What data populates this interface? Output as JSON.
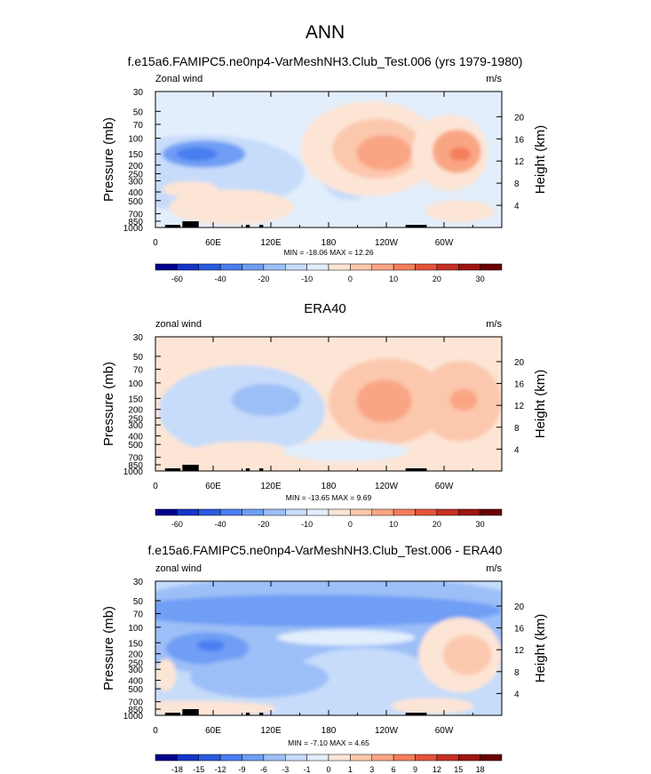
{
  "figure": {
    "title": "ANN"
  },
  "chart_data": [
    {
      "type": "heatmap",
      "title": "f.e15a6.FAMIPC5.ne0np4-VarMeshNH3.Club_Test.006 (yrs 1979-1980)",
      "left_label": "Zonal wind",
      "units": "m/s",
      "ylabel": "Pressure (mb)",
      "ylabel_right": "Height (km)",
      "pressure_ticks": [
        "30",
        "50",
        "70",
        "100",
        "150",
        "200",
        "250",
        "300",
        "400",
        "500",
        "700",
        "850",
        "1000"
      ],
      "height_ticks": [
        "20",
        "16",
        "12",
        "8",
        "4"
      ],
      "lon_ticks": [
        "0",
        "60E",
        "120E",
        "180",
        "120W",
        "60W"
      ],
      "stats": "MIN = -18.06  MAX = 12.26",
      "min": -18.06,
      "max": 12.26,
      "colorbar_levels": [
        "-60",
        "-40",
        "-20",
        "-10",
        "0",
        "10",
        "20",
        "30"
      ],
      "colorbar_colors": [
        "#00008b",
        "#1535c9",
        "#2b5bde",
        "#4a7ef0",
        "#6f9ef5",
        "#9dbff7",
        "#c6dcfa",
        "#e2eefc",
        "#fde5d6",
        "#fcc8ad",
        "#f9a584",
        "#f47d5b",
        "#e4543a",
        "#c53025",
        "#9e1512",
        "#6b0000"
      ],
      "field_features": [
        {
          "lon": 72,
          "p": 150,
          "value": -18
        },
        {
          "lon": 72,
          "p": 180,
          "value": -12
        },
        {
          "lon": 170,
          "p": 70,
          "value": -6
        },
        {
          "lon": 210,
          "p": 150,
          "value": 12
        },
        {
          "lon": 305,
          "p": 150,
          "value": 12
        },
        {
          "lon": 40,
          "p": 700,
          "value": 3
        },
        {
          "lon": 20,
          "p": 300,
          "value": 1
        }
      ]
    },
    {
      "type": "heatmap",
      "title": "ERA40",
      "left_label": "zonal wind",
      "units": "m/s",
      "ylabel": "Pressure (mb)",
      "ylabel_right": "Height (km)",
      "pressure_ticks": [
        "30",
        "50",
        "70",
        "100",
        "150",
        "200",
        "250",
        "300",
        "400",
        "500",
        "700",
        "850",
        "1000"
      ],
      "height_ticks": [
        "20",
        "16",
        "12",
        "8",
        "4"
      ],
      "lon_ticks": [
        "0",
        "60E",
        "120E",
        "180",
        "120W",
        "60W"
      ],
      "stats": "MIN = -13.65  MAX = 9.69",
      "min": -13.65,
      "max": 9.69,
      "colorbar_levels": [
        "-60",
        "-40",
        "-20",
        "-10",
        "0",
        "10",
        "20",
        "30"
      ],
      "colorbar_colors": [
        "#00008b",
        "#1535c9",
        "#2b5bde",
        "#4a7ef0",
        "#6f9ef5",
        "#9dbff7",
        "#c6dcfa",
        "#e2eefc",
        "#fde5d6",
        "#fcc8ad",
        "#f9a584",
        "#f47d5b",
        "#e4543a",
        "#c53025",
        "#9e1512",
        "#6b0000"
      ],
      "field_features": [
        {
          "lon": 110,
          "p": 150,
          "value": -8
        },
        {
          "lon": 60,
          "p": 300,
          "value": -4
        },
        {
          "lon": 225,
          "p": 150,
          "value": 10
        },
        {
          "lon": 315,
          "p": 150,
          "value": 9
        },
        {
          "lon": 60,
          "p": 800,
          "value": 2
        }
      ]
    },
    {
      "type": "heatmap",
      "title": "f.e15a6.FAMIPC5.ne0np4-VarMeshNH3.Club_Test.006 - ERA40",
      "left_label": "zonal wind",
      "units": "m/s",
      "ylabel": "Pressure (mb)",
      "ylabel_right": "Height (km)",
      "pressure_ticks": [
        "30",
        "50",
        "70",
        "100",
        "150",
        "200",
        "250",
        "300",
        "400",
        "500",
        "700",
        "850",
        "1000"
      ],
      "height_ticks": [
        "20",
        "16",
        "12",
        "8",
        "4"
      ],
      "lon_ticks": [
        "0",
        "60E",
        "120E",
        "180",
        "120W",
        "60W"
      ],
      "stats": "MIN = -7.10  MAX = 4.65",
      "min": -7.1,
      "max": 4.65,
      "colorbar_levels": [
        "-18",
        "-15",
        "-12",
        "-9",
        "-6",
        "-3",
        "-1",
        "0",
        "1",
        "3",
        "6",
        "9",
        "12",
        "15",
        "18"
      ],
      "colorbar_colors": [
        "#00008b",
        "#1535c9",
        "#2b5bde",
        "#4a7ef0",
        "#6f9ef5",
        "#9dbff7",
        "#c6dcfa",
        "#e2eefc",
        "#fde5d6",
        "#fcc8ad",
        "#f9a584",
        "#f47d5b",
        "#e4543a",
        "#c53025",
        "#9e1512",
        "#6b0000"
      ],
      "field_features": [
        {
          "lon": 60,
          "p": 170,
          "value": -7
        },
        {
          "lon": 180,
          "p": 60,
          "value": -5
        },
        {
          "lon": 320,
          "p": 170,
          "value": 4.5
        },
        {
          "lon": 5,
          "p": 400,
          "value": 2
        },
        {
          "lon": 150,
          "p": 150,
          "value": 1
        }
      ]
    }
  ]
}
